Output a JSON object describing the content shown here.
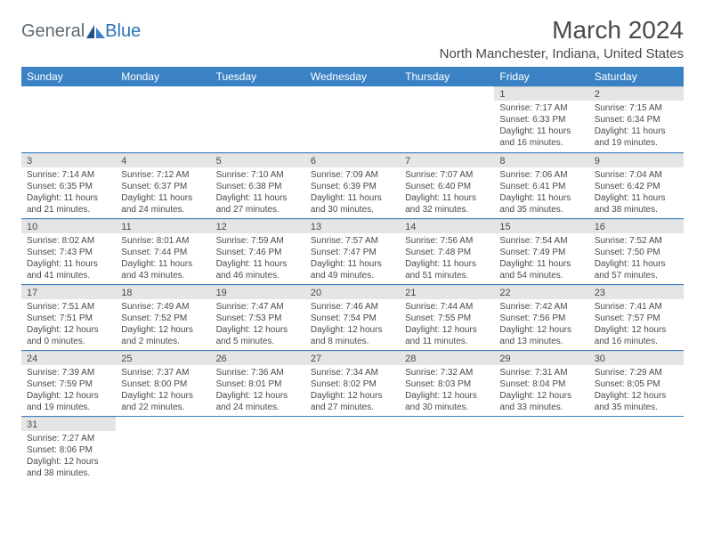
{
  "brand": {
    "general": "General",
    "blue": "Blue"
  },
  "title": "March 2024",
  "location": "North Manchester, Indiana, United States",
  "header_color": "#3b82c4",
  "daynum_bg": "#e3e5e7",
  "text_color": "#4a4a4a",
  "day_headers": [
    "Sunday",
    "Monday",
    "Tuesday",
    "Wednesday",
    "Thursday",
    "Friday",
    "Saturday"
  ],
  "weeks": [
    [
      null,
      null,
      null,
      null,
      null,
      {
        "d": "1",
        "sr": "7:17 AM",
        "ss": "6:33 PM",
        "dl": "11 hours and 16 minutes."
      },
      {
        "d": "2",
        "sr": "7:15 AM",
        "ss": "6:34 PM",
        "dl": "11 hours and 19 minutes."
      }
    ],
    [
      {
        "d": "3",
        "sr": "7:14 AM",
        "ss": "6:35 PM",
        "dl": "11 hours and 21 minutes."
      },
      {
        "d": "4",
        "sr": "7:12 AM",
        "ss": "6:37 PM",
        "dl": "11 hours and 24 minutes."
      },
      {
        "d": "5",
        "sr": "7:10 AM",
        "ss": "6:38 PM",
        "dl": "11 hours and 27 minutes."
      },
      {
        "d": "6",
        "sr": "7:09 AM",
        "ss": "6:39 PM",
        "dl": "11 hours and 30 minutes."
      },
      {
        "d": "7",
        "sr": "7:07 AM",
        "ss": "6:40 PM",
        "dl": "11 hours and 32 minutes."
      },
      {
        "d": "8",
        "sr": "7:06 AM",
        "ss": "6:41 PM",
        "dl": "11 hours and 35 minutes."
      },
      {
        "d": "9",
        "sr": "7:04 AM",
        "ss": "6:42 PM",
        "dl": "11 hours and 38 minutes."
      }
    ],
    [
      {
        "d": "10",
        "sr": "8:02 AM",
        "ss": "7:43 PM",
        "dl": "11 hours and 41 minutes."
      },
      {
        "d": "11",
        "sr": "8:01 AM",
        "ss": "7:44 PM",
        "dl": "11 hours and 43 minutes."
      },
      {
        "d": "12",
        "sr": "7:59 AM",
        "ss": "7:46 PM",
        "dl": "11 hours and 46 minutes."
      },
      {
        "d": "13",
        "sr": "7:57 AM",
        "ss": "7:47 PM",
        "dl": "11 hours and 49 minutes."
      },
      {
        "d": "14",
        "sr": "7:56 AM",
        "ss": "7:48 PM",
        "dl": "11 hours and 51 minutes."
      },
      {
        "d": "15",
        "sr": "7:54 AM",
        "ss": "7:49 PM",
        "dl": "11 hours and 54 minutes."
      },
      {
        "d": "16",
        "sr": "7:52 AM",
        "ss": "7:50 PM",
        "dl": "11 hours and 57 minutes."
      }
    ],
    [
      {
        "d": "17",
        "sr": "7:51 AM",
        "ss": "7:51 PM",
        "dl": "12 hours and 0 minutes."
      },
      {
        "d": "18",
        "sr": "7:49 AM",
        "ss": "7:52 PM",
        "dl": "12 hours and 2 minutes."
      },
      {
        "d": "19",
        "sr": "7:47 AM",
        "ss": "7:53 PM",
        "dl": "12 hours and 5 minutes."
      },
      {
        "d": "20",
        "sr": "7:46 AM",
        "ss": "7:54 PM",
        "dl": "12 hours and 8 minutes."
      },
      {
        "d": "21",
        "sr": "7:44 AM",
        "ss": "7:55 PM",
        "dl": "12 hours and 11 minutes."
      },
      {
        "d": "22",
        "sr": "7:42 AM",
        "ss": "7:56 PM",
        "dl": "12 hours and 13 minutes."
      },
      {
        "d": "23",
        "sr": "7:41 AM",
        "ss": "7:57 PM",
        "dl": "12 hours and 16 minutes."
      }
    ],
    [
      {
        "d": "24",
        "sr": "7:39 AM",
        "ss": "7:59 PM",
        "dl": "12 hours and 19 minutes."
      },
      {
        "d": "25",
        "sr": "7:37 AM",
        "ss": "8:00 PM",
        "dl": "12 hours and 22 minutes."
      },
      {
        "d": "26",
        "sr": "7:36 AM",
        "ss": "8:01 PM",
        "dl": "12 hours and 24 minutes."
      },
      {
        "d": "27",
        "sr": "7:34 AM",
        "ss": "8:02 PM",
        "dl": "12 hours and 27 minutes."
      },
      {
        "d": "28",
        "sr": "7:32 AM",
        "ss": "8:03 PM",
        "dl": "12 hours and 30 minutes."
      },
      {
        "d": "29",
        "sr": "7:31 AM",
        "ss": "8:04 PM",
        "dl": "12 hours and 33 minutes."
      },
      {
        "d": "30",
        "sr": "7:29 AM",
        "ss": "8:05 PM",
        "dl": "12 hours and 35 minutes."
      }
    ],
    [
      {
        "d": "31",
        "sr": "7:27 AM",
        "ss": "8:06 PM",
        "dl": "12 hours and 38 minutes."
      },
      null,
      null,
      null,
      null,
      null,
      null
    ]
  ],
  "labels": {
    "sunrise": "Sunrise: ",
    "sunset": "Sunset: ",
    "daylight": "Daylight: "
  }
}
